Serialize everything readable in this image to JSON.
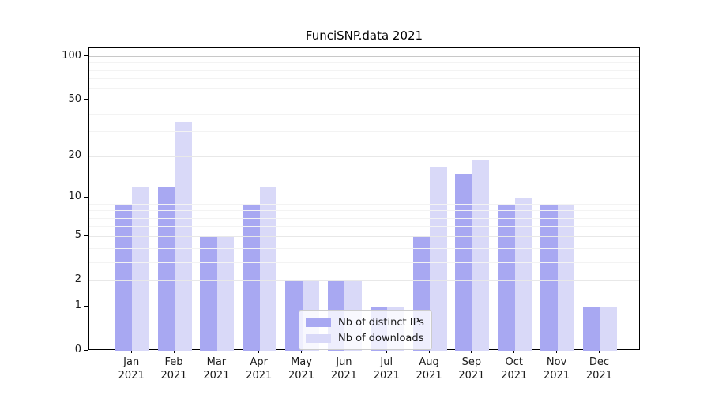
{
  "figure": {
    "title": "FunciSNP.data 2021"
  },
  "chart_data": {
    "type": "bar",
    "title": "FunciSNP.data 2021",
    "categories": [
      "Jan",
      "Feb",
      "Mar",
      "Apr",
      "May",
      "Jun",
      "Jul",
      "Aug",
      "Sep",
      "Oct",
      "Nov",
      "Dec"
    ],
    "year_label": "2021",
    "series": [
      {
        "name": "Nb of distinct IPs",
        "color": "#a8a8f2",
        "values": [
          9,
          12,
          5,
          9,
          2,
          2,
          1,
          5,
          15,
          9,
          9,
          1
        ]
      },
      {
        "name": "Nb of downloads",
        "color": "#d9d9f8",
        "values": [
          12,
          35,
          5,
          12,
          2,
          2,
          1,
          17,
          19,
          10,
          9,
          1
        ]
      }
    ],
    "yscale": "log1p",
    "ylim": [
      0,
      115
    ],
    "yticks": [
      100,
      50,
      20,
      10,
      5,
      2,
      1,
      0
    ],
    "decade_gridlines": [
      1,
      10,
      100
    ],
    "labeled_gridlines": [
      2,
      5,
      20,
      50
    ],
    "minor_gridlines": [
      3,
      4,
      6,
      7,
      8,
      9,
      30,
      40,
      60,
      70,
      80,
      90
    ],
    "grid": true,
    "legend_position": "lower center"
  },
  "colors": {
    "decade_grid": "#c8c8c8",
    "labeled_grid": "#e8e8e8",
    "minor_grid": "#f3f3f3",
    "frame": "#000000",
    "text": "#1a1a1a"
  }
}
